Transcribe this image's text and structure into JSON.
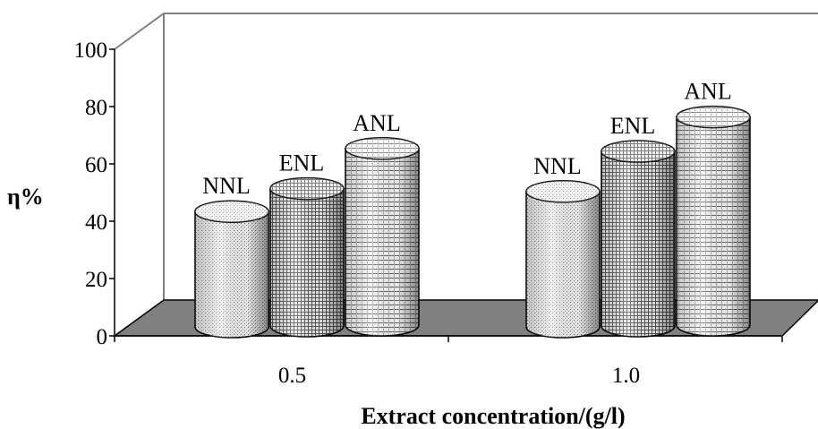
{
  "chart_data": {
    "type": "bar",
    "title": "",
    "xlabel": "Extract concentration/(g/l)",
    "ylabel": "η%",
    "categories": [
      "0.5",
      "1.0"
    ],
    "series": [
      {
        "name": "NNL",
        "values": [
          49,
          56
        ]
      },
      {
        "name": "ENL",
        "values": [
          57,
          70
        ]
      },
      {
        "name": "ANL",
        "values": [
          71,
          82
        ]
      }
    ],
    "ylim": [
      0,
      100
    ],
    "yticks": [
      0,
      20,
      40,
      60,
      80,
      100
    ],
    "grid": false,
    "legend": "none",
    "bar_labels": "series name above each bar",
    "style": "3d-cylinder",
    "colors": {
      "floor": "#808080",
      "bar": "#e8e8e8",
      "stroke": "#000000"
    }
  }
}
